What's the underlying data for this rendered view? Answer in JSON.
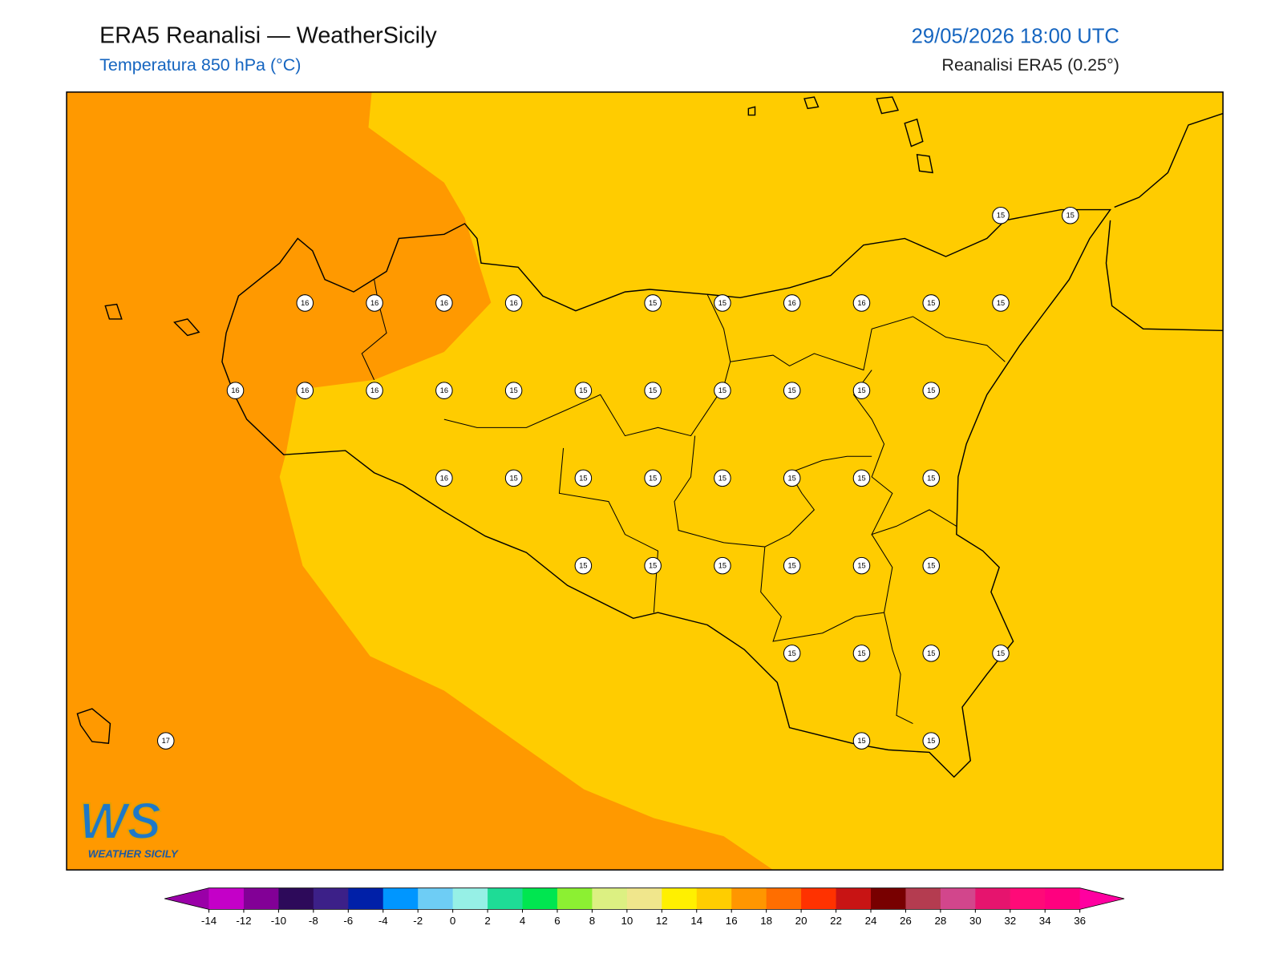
{
  "header": {
    "title": "ERA5 Reanalisi — WeatherSicily",
    "subtitle": "Temperatura 850 hPa (°C)",
    "datetime": "29/05/2026 18:00 UTC",
    "source": "Reanalisi ERA5 (0.25°)"
  },
  "map": {
    "point_values": [
      [
        null,
        null,
        null,
        null,
        null,
        null,
        null,
        null,
        null,
        null,
        null,
        null,
        null,
        15,
        15
      ],
      [
        null,
        null,
        null,
        16,
        16,
        16,
        16,
        null,
        15,
        15,
        16,
        16,
        15,
        15,
        null
      ],
      [
        null,
        null,
        16,
        16,
        16,
        16,
        15,
        15,
        15,
        15,
        15,
        15,
        15,
        null,
        null
      ],
      [
        null,
        null,
        null,
        null,
        null,
        16,
        15,
        15,
        15,
        15,
        15,
        15,
        15,
        null,
        null
      ],
      [
        null,
        null,
        null,
        null,
        null,
        null,
        null,
        15,
        15,
        15,
        15,
        15,
        15,
        null,
        null
      ],
      [
        null,
        null,
        null,
        null,
        null,
        null,
        null,
        null,
        null,
        null,
        15,
        15,
        15,
        15,
        null
      ],
      [
        null,
        17,
        null,
        null,
        null,
        null,
        null,
        null,
        null,
        null,
        null,
        15,
        15,
        null,
        null
      ]
    ]
  },
  "colorbar": {
    "ticks": [
      -14,
      -12,
      -10,
      -8,
      -6,
      -4,
      -2,
      0,
      2,
      4,
      6,
      8,
      10,
      12,
      14,
      16,
      18,
      20,
      22,
      24,
      26,
      28,
      30,
      32,
      34,
      36
    ],
    "colors": [
      "#9a00a8",
      "#c400c8",
      "#820096",
      "#2d0a5a",
      "#3c2088",
      "#0020a8",
      "#0096ff",
      "#6ecdf5",
      "#96f0e6",
      "#1edc96",
      "#00e650",
      "#8cf032",
      "#dcf082",
      "#f0e68c",
      "#fff000",
      "#ffcd00",
      "#ff9600",
      "#ff6e00",
      "#ff3200",
      "#c81414",
      "#780000",
      "#b43c50",
      "#d2468c",
      "#e6146e",
      "#ff0a78",
      "#ff007f",
      "#ff00a0"
    ]
  },
  "logo": {
    "mark": "WS",
    "name": "WEATHER SICILY"
  }
}
